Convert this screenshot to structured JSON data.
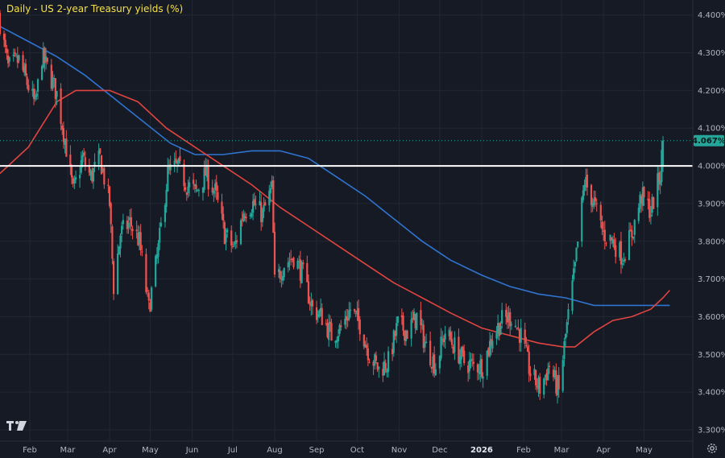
{
  "chart_data": {
    "type": "candlestick",
    "title": "Daily - US 2-year Treasury yields (%)",
    "y_axis": {
      "position": "right",
      "ticks": [
        {
          "value": 4.4,
          "label": "4.400%"
        },
        {
          "value": 4.3,
          "label": "4.300%"
        },
        {
          "value": 4.2,
          "label": "4.200%"
        },
        {
          "value": 4.1,
          "label": "4.100%"
        },
        {
          "value": 4.0,
          "label": "4.000%"
        },
        {
          "value": 3.9,
          "label": "3.900%"
        },
        {
          "value": 3.8,
          "label": "3.800%"
        },
        {
          "value": 3.7,
          "label": "3.700%"
        },
        {
          "value": 3.6,
          "label": "3.600%"
        },
        {
          "value": 3.5,
          "label": "3.500%"
        },
        {
          "value": 3.4,
          "label": "3.400%"
        },
        {
          "value": 3.3,
          "label": "3.300%"
        }
      ],
      "range": [
        3.27,
        4.44
      ]
    },
    "x_axis": {
      "ticks": [
        {
          "label": "Feb",
          "date": "2025-02-01",
          "bold": false
        },
        {
          "label": "Mar",
          "date": "2025-03-01",
          "bold": false
        },
        {
          "label": "Apr",
          "date": "2025-04-01",
          "bold": false
        },
        {
          "label": "May",
          "date": "2025-05-01",
          "bold": false
        },
        {
          "label": "Jun",
          "date": "2025-06-01",
          "bold": false
        },
        {
          "label": "Jul",
          "date": "2025-07-01",
          "bold": false
        },
        {
          "label": "Aug",
          "date": "2025-08-01",
          "bold": false
        },
        {
          "label": "Sep",
          "date": "2025-09-01",
          "bold": false
        },
        {
          "label": "Oct",
          "date": "2025-10-01",
          "bold": false
        },
        {
          "label": "Nov",
          "date": "2025-11-01",
          "bold": false
        },
        {
          "label": "Dec",
          "date": "2025-12-01",
          "bold": false
        },
        {
          "label": "2026",
          "date": "2026-01-01",
          "bold": true
        },
        {
          "label": "Feb",
          "date": "2026-02-01",
          "bold": false
        },
        {
          "label": "Mar",
          "date": "2026-03-01",
          "bold": false
        },
        {
          "label": "Apr",
          "date": "2026-04-01",
          "bold": false
        },
        {
          "label": "May",
          "date": "2026-05-01",
          "bold": false
        }
      ],
      "range": [
        "2025-01-10",
        "2026-06-06"
      ]
    },
    "horizontal_level": {
      "value": 4.0,
      "color": "#ffffff"
    },
    "last_price": {
      "value": 4.067,
      "label": "4.067%",
      "color": "#26a69a"
    },
    "grid": true,
    "colors": {
      "up": "#26a69a",
      "down": "#ef5350",
      "ma_fast": "#e0443f",
      "ma_slow": "#2f74d0"
    },
    "close_path": [
      [
        "2025-01-10",
        4.38
      ],
      [
        "2025-01-16",
        4.26
      ],
      [
        "2025-01-24",
        4.28
      ],
      [
        "2025-01-31",
        4.21
      ],
      [
        "2025-02-05",
        4.16
      ],
      [
        "2025-02-10",
        4.29
      ],
      [
        "2025-02-14",
        4.26
      ],
      [
        "2025-02-21",
        4.19
      ],
      [
        "2025-02-27",
        4.07
      ],
      [
        "2025-03-05",
        3.93
      ],
      [
        "2025-03-12",
        4.02
      ],
      [
        "2025-03-18",
        3.97
      ],
      [
        "2025-03-25",
        4.02
      ],
      [
        "2025-04-01",
        3.9
      ],
      [
        "2025-04-04",
        3.68
      ],
      [
        "2025-04-09",
        3.82
      ],
      [
        "2025-04-16",
        3.85
      ],
      [
        "2025-04-23",
        3.8
      ],
      [
        "2025-04-30",
        3.62
      ],
      [
        "2025-05-07",
        3.78
      ],
      [
        "2025-05-14",
        3.98
      ],
      [
        "2025-05-21",
        4.0
      ],
      [
        "2025-05-28",
        3.95
      ],
      [
        "2025-06-04",
        3.93
      ],
      [
        "2025-06-11",
        3.98
      ],
      [
        "2025-06-18",
        3.93
      ],
      [
        "2025-06-25",
        3.82
      ],
      [
        "2025-07-02",
        3.78
      ],
      [
        "2025-07-09",
        3.88
      ],
      [
        "2025-07-16",
        3.9
      ],
      [
        "2025-07-23",
        3.87
      ],
      [
        "2025-07-30",
        3.94
      ],
      [
        "2025-08-01",
        3.69
      ],
      [
        "2025-08-08",
        3.74
      ],
      [
        "2025-08-15",
        3.76
      ],
      [
        "2025-08-22",
        3.71
      ],
      [
        "2025-08-29",
        3.62
      ],
      [
        "2025-09-05",
        3.6
      ],
      [
        "2025-09-12",
        3.55
      ],
      [
        "2025-09-19",
        3.57
      ],
      [
        "2025-09-26",
        3.62
      ],
      [
        "2025-10-03",
        3.58
      ],
      [
        "2025-10-10",
        3.5
      ],
      [
        "2025-10-17",
        3.46
      ],
      [
        "2025-10-24",
        3.48
      ],
      [
        "2025-10-31",
        3.58
      ],
      [
        "2025-11-07",
        3.56
      ],
      [
        "2025-11-14",
        3.6
      ],
      [
        "2025-11-21",
        3.52
      ],
      [
        "2025-11-28",
        3.47
      ],
      [
        "2025-12-05",
        3.56
      ],
      [
        "2025-12-12",
        3.52
      ],
      [
        "2025-12-19",
        3.48
      ],
      [
        "2025-12-26",
        3.47
      ],
      [
        "2026-01-02",
        3.47
      ],
      [
        "2026-01-09",
        3.55
      ],
      [
        "2026-01-16",
        3.59
      ],
      [
        "2026-01-23",
        3.6
      ],
      [
        "2026-01-30",
        3.55
      ],
      [
        "2026-02-06",
        3.45
      ],
      [
        "2026-02-13",
        3.41
      ],
      [
        "2026-02-20",
        3.47
      ],
      [
        "2026-02-27",
        3.4
      ],
      [
        "2026-03-04",
        3.55
      ],
      [
        "2026-03-11",
        3.73
      ],
      [
        "2026-03-18",
        3.96
      ],
      [
        "2026-03-25",
        3.9
      ],
      [
        "2026-04-01",
        3.82
      ],
      [
        "2026-04-08",
        3.8
      ],
      [
        "2026-04-15",
        3.76
      ],
      [
        "2026-04-22",
        3.82
      ],
      [
        "2026-04-29",
        3.92
      ],
      [
        "2026-05-06",
        3.88
      ],
      [
        "2026-05-13",
        3.98
      ],
      [
        "2026-05-15",
        4.067
      ]
    ],
    "ma_fast": [
      [
        "2025-01-10",
        3.98
      ],
      [
        "2025-01-31",
        4.05
      ],
      [
        "2025-02-21",
        4.17
      ],
      [
        "2025-03-07",
        4.2
      ],
      [
        "2025-04-01",
        4.2
      ],
      [
        "2025-04-22",
        4.17
      ],
      [
        "2025-05-13",
        4.1
      ],
      [
        "2025-06-03",
        4.05
      ],
      [
        "2025-06-24",
        4.0
      ],
      [
        "2025-07-15",
        3.95
      ],
      [
        "2025-08-05",
        3.89
      ],
      [
        "2025-08-26",
        3.84
      ],
      [
        "2025-09-16",
        3.79
      ],
      [
        "2025-10-07",
        3.74
      ],
      [
        "2025-10-28",
        3.69
      ],
      [
        "2025-11-18",
        3.65
      ],
      [
        "2025-12-09",
        3.61
      ],
      [
        "2026-01-01",
        3.57
      ],
      [
        "2026-01-22",
        3.55
      ],
      [
        "2026-02-12",
        3.53
      ],
      [
        "2026-03-02",
        3.52
      ],
      [
        "2026-03-11",
        3.52
      ],
      [
        "2026-03-25",
        3.56
      ],
      [
        "2026-04-08",
        3.59
      ],
      [
        "2026-04-22",
        3.6
      ],
      [
        "2026-05-06",
        3.62
      ],
      [
        "2026-05-15",
        3.65
      ],
      [
        "2026-05-20",
        3.67
      ]
    ],
    "ma_slow": [
      [
        "2025-01-10",
        4.37
      ],
      [
        "2025-01-31",
        4.33
      ],
      [
        "2025-02-21",
        4.29
      ],
      [
        "2025-03-14",
        4.24
      ],
      [
        "2025-04-04",
        4.18
      ],
      [
        "2025-04-25",
        4.12
      ],
      [
        "2025-05-16",
        4.06
      ],
      [
        "2025-06-03",
        4.03
      ],
      [
        "2025-06-24",
        4.03
      ],
      [
        "2025-07-15",
        4.04
      ],
      [
        "2025-08-05",
        4.04
      ],
      [
        "2025-08-26",
        4.02
      ],
      [
        "2025-09-16",
        3.97
      ],
      [
        "2025-10-07",
        3.92
      ],
      [
        "2025-10-28",
        3.86
      ],
      [
        "2025-11-18",
        3.8
      ],
      [
        "2025-12-09",
        3.75
      ],
      [
        "2026-01-01",
        3.71
      ],
      [
        "2026-01-22",
        3.68
      ],
      [
        "2026-02-12",
        3.66
      ],
      [
        "2026-03-04",
        3.65
      ],
      [
        "2026-03-25",
        3.63
      ],
      [
        "2026-04-15",
        3.63
      ],
      [
        "2026-05-06",
        3.63
      ],
      [
        "2026-05-20",
        3.63
      ]
    ]
  },
  "icons": {
    "settings": "gear-icon",
    "logo": "tradingview-logo-icon"
  }
}
